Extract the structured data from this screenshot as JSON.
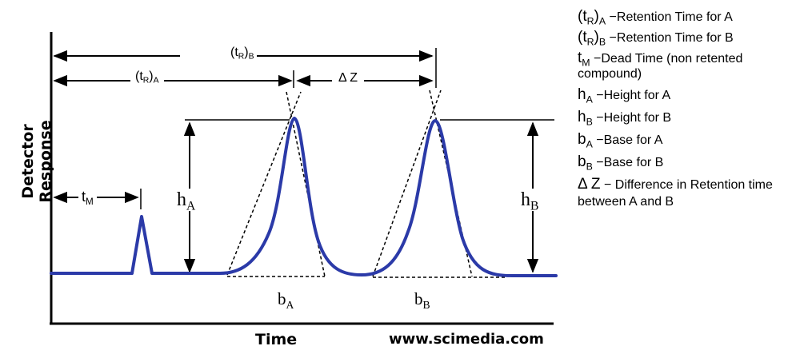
{
  "figure": {
    "axis_y_label": "Detector Response",
    "axis_x_label": "Time",
    "credit": "www.scimedia.com",
    "line_color": "#2b3aa8",
    "labels": {
      "tR_B": {
        "base": "(t",
        "sub1": "R",
        "mid": ")",
        "sub2": "B"
      },
      "tR_A": {
        "base": "(t",
        "sub1": "R",
        "mid": ")",
        "sub2": "A"
      },
      "delta_z": "Δ Z",
      "tM": {
        "base": "t",
        "sub": "M"
      },
      "hA": {
        "base": "h",
        "sub": "A"
      },
      "hB": {
        "base": "h",
        "sub": "B"
      },
      "bA": {
        "base": "b",
        "sub": "A"
      },
      "bB": {
        "base": "b",
        "sub": "B"
      }
    }
  },
  "legend": [
    {
      "sym": "(t",
      "s1": "R",
      "mid": ")",
      "s2": "A",
      "desc": " −Retention Time for A"
    },
    {
      "sym": "(t",
      "s1": "R",
      "mid": ")",
      "s2": "B",
      "desc": " −Retention Time for B"
    },
    {
      "sym": "t",
      "s1": "M",
      "mid": "",
      "s2": "",
      "desc": " −Dead Time (non retented compound)"
    },
    {
      "sym": "h",
      "s1": "A",
      "mid": "",
      "s2": "",
      "desc": " −Height for A"
    },
    {
      "sym": "h",
      "s1": "B",
      "mid": "",
      "s2": "",
      "desc": " −Height for B"
    },
    {
      "sym": "b",
      "s1": "A",
      "mid": "",
      "s2": "",
      "desc": " −Base for A"
    },
    {
      "sym": "b",
      "s1": "B",
      "mid": "",
      "s2": "",
      "desc": " −Base for B"
    },
    {
      "sym": "Δ Z",
      "s1": "",
      "mid": "",
      "s2": "",
      "desc": " − Difference in Retention time between A and B"
    }
  ]
}
